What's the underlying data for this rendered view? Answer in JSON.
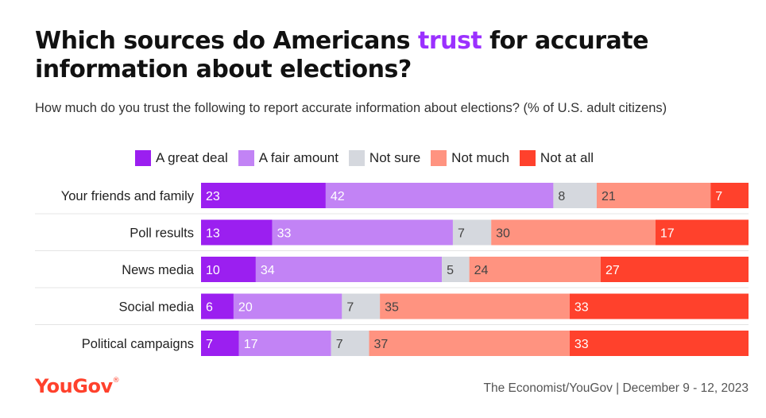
{
  "header": {
    "title_part1": "Which sources do Americans ",
    "title_accent": "trust",
    "title_part2": " for accurate information about elections?",
    "subtitle": "How much do you trust the following to report accurate information about elections? (% of U.S. adult citizens)"
  },
  "legend": [
    {
      "label": "A great deal",
      "color": "#9b1ff0"
    },
    {
      "label": "A fair amount",
      "color": "#c283f5"
    },
    {
      "label": "Not sure",
      "color": "#d5d8de"
    },
    {
      "label": "Not much",
      "color": "#ff9380"
    },
    {
      "label": "Not at all",
      "color": "#ff412c"
    }
  ],
  "footer": {
    "logo": "YouGov",
    "source": "The Economist/YouGov | December 9 - 12, 2023"
  },
  "chart_data": {
    "type": "bar",
    "orientation": "horizontal",
    "stacked": "100%",
    "categories": [
      "Your friends and family",
      "Poll results",
      "News media",
      "Social media",
      "Political campaigns"
    ],
    "series": [
      {
        "name": "A great deal",
        "values": [
          23,
          13,
          10,
          6,
          7
        ],
        "color": "#9b1ff0",
        "label_color": "#ffffff"
      },
      {
        "name": "A fair amount",
        "values": [
          42,
          33,
          34,
          20,
          17
        ],
        "color": "#c283f5",
        "label_color": "#ffffff"
      },
      {
        "name": "Not sure",
        "values": [
          8,
          7,
          5,
          7,
          7
        ],
        "color": "#d5d8de",
        "label_color": "#444444"
      },
      {
        "name": "Not much",
        "values": [
          21,
          30,
          24,
          35,
          37
        ],
        "color": "#ff9380",
        "label_color": "#444444"
      },
      {
        "name": "Not at all",
        "values": [
          7,
          17,
          27,
          33,
          33
        ],
        "color": "#ff412c",
        "label_color": "#ffffff"
      }
    ],
    "legend_position": "top",
    "grid": false
  }
}
